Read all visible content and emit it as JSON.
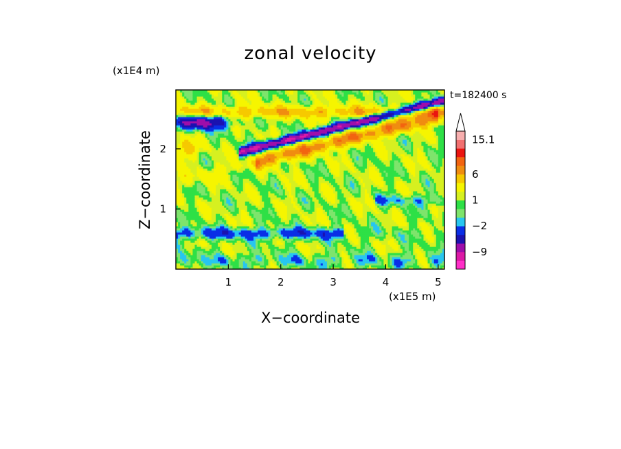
{
  "chart_data": {
    "type": "heatmap",
    "title": "zonal velocity",
    "time_label": "t=182400 s",
    "xlabel": "X−coordinate",
    "ylabel": "Z−coordinate",
    "x_scale_label": "(x1E5 m)",
    "y_scale_label": "(x1E4 m)",
    "xlim": [
      0,
      5.12
    ],
    "ylim": [
      0,
      2.98
    ],
    "x_ticks": [
      "1",
      "2",
      "3",
      "4",
      "5"
    ],
    "x_tick_values": [
      1,
      2,
      3,
      4,
      5
    ],
    "y_ticks": [
      "1",
      "2"
    ],
    "y_tick_values": [
      1,
      2
    ],
    "colorbar": {
      "levels": [
        -15,
        -12,
        -9,
        -6,
        -4,
        -2,
        -1,
        0,
        1,
        2,
        4,
        6,
        8,
        10,
        12.5,
        15.1
      ],
      "colors": [
        "#ff2fc8",
        "#dd1aa6",
        "#9e0eaa",
        "#1b12b0",
        "#0a2ee6",
        "#27c6f0",
        "#7ee46c",
        "#2ee046",
        "#d6f020",
        "#f6f500",
        "#f6c900",
        "#f08d10",
        "#f26410",
        "#ea1510",
        "#f27070",
        "#f7aeae"
      ],
      "tick_labels": [
        "15.1",
        "6",
        "1",
        "−2",
        "−9"
      ],
      "tick_values": [
        15.1,
        6,
        1,
        -2,
        -9
      ],
      "extend": "max"
    }
  }
}
